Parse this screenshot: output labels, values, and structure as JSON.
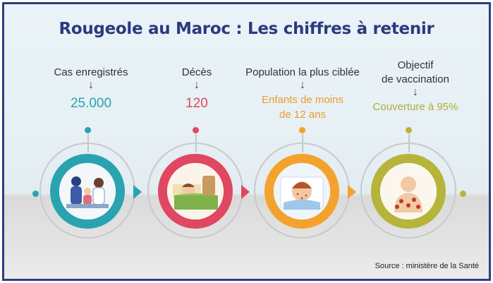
{
  "title": "Rougeole au Maroc : Les chiffres à retenir",
  "colors": {
    "frame": "#2b3f84",
    "teal": "#2aa3b0",
    "red": "#e04760",
    "orange": "#f4a22e",
    "olive": "#b6b43a"
  },
  "stats": [
    {
      "label": "Cas enregistrés",
      "value": "25.000",
      "icon": "family-consultation-icon"
    },
    {
      "label": "Décès",
      "value": "120",
      "icon": "sick-child-in-bed-icon"
    },
    {
      "label": "Population la plus ciblée",
      "value_line1": "Enfants de moins",
      "value_line2": "de 12 ans",
      "icon": "child-with-rash-icon"
    },
    {
      "label_line1": "Objectif",
      "label_line2": "de vaccination",
      "value": "Couverture à 95%",
      "icon": "virus-back-icon"
    }
  ],
  "arrow": "↓",
  "source": "Source : ministère de la Santé"
}
